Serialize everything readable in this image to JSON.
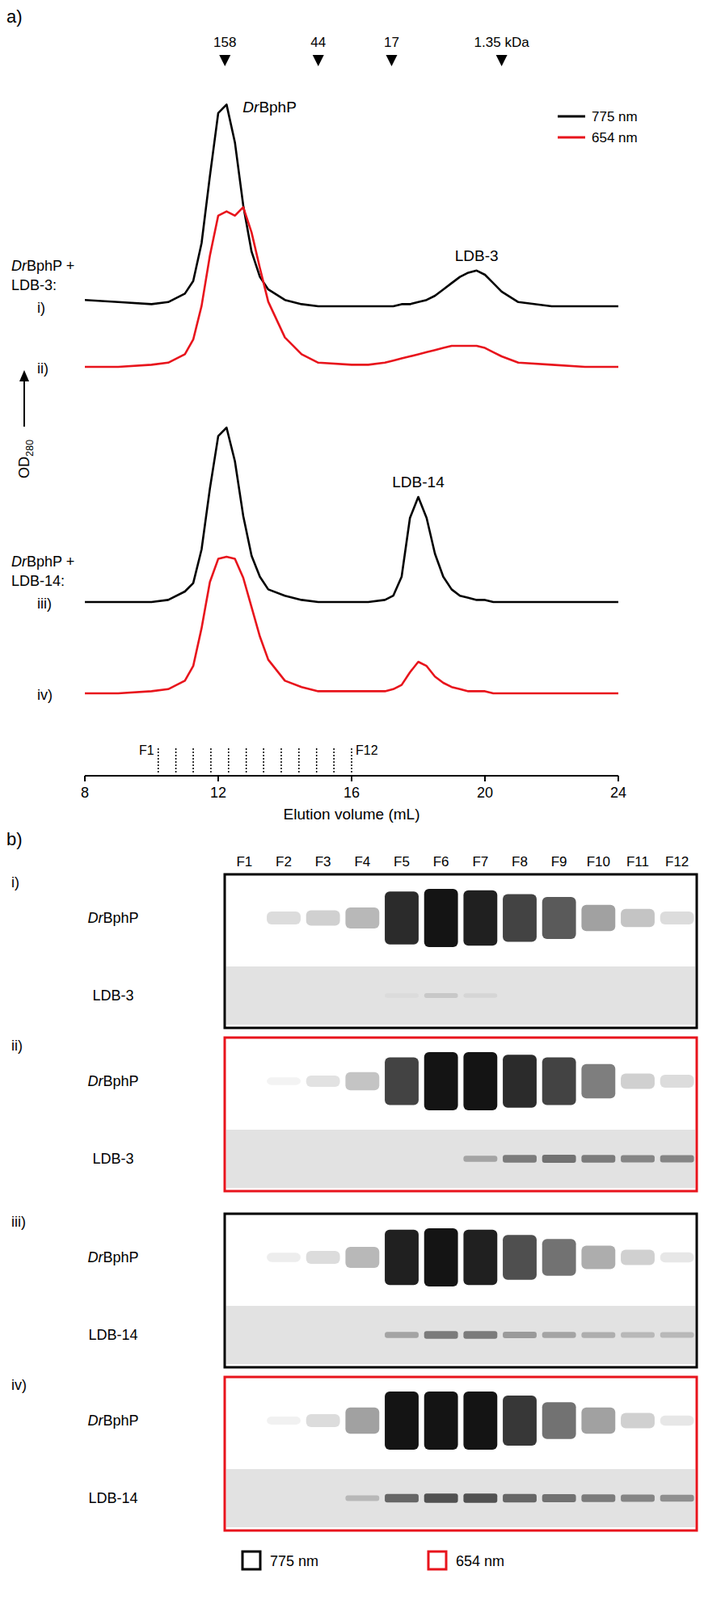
{
  "chart_data": [
    {
      "type": "line",
      "title": "a)",
      "x": [
        8,
        9,
        10,
        10.5,
        11,
        11.25,
        11.5,
        11.75,
        12,
        12.25,
        12.5,
        12.75,
        13,
        13.25,
        13.5,
        14,
        14.5,
        15,
        16,
        16.5,
        17,
        17.25,
        17.5,
        17.75,
        18,
        18.25,
        18.5,
        18.75,
        19,
        19.25,
        19.5,
        19.75,
        20,
        20.25,
        20.5,
        21,
        22,
        23,
        24
      ],
      "xlim": [
        8,
        24
      ],
      "xticks": [
        8,
        12,
        16,
        20,
        24
      ],
      "ylim": [
        0,
        1
      ],
      "tick_labels": "x",
      "x_label": "Elution volume (mL)",
      "y_label": "OD280",
      "series": [
        {
          "name": "775 nm",
          "label": "i)",
          "color": "#000000",
          "values": [
            0.03,
            0.02,
            0.01,
            0.02,
            0.06,
            0.12,
            0.3,
            0.62,
            0.92,
            0.96,
            0.78,
            0.48,
            0.26,
            0.14,
            0.08,
            0.03,
            0.01,
            0,
            0,
            0,
            0,
            0,
            0.01,
            0.01,
            0.02,
            0.03,
            0.05,
            0.08,
            0.11,
            0.14,
            0.16,
            0.17,
            0.15,
            0.11,
            0.07,
            0.02,
            0,
            0,
            0
          ]
        },
        {
          "name": "654 nm",
          "label": "ii)",
          "color": "#e8141c",
          "values": [
            0,
            0,
            0.01,
            0.02,
            0.06,
            0.13,
            0.29,
            0.53,
            0.72,
            0.74,
            0.72,
            0.76,
            0.64,
            0.47,
            0.31,
            0.14,
            0.06,
            0.02,
            0.01,
            0.01,
            0.02,
            0.03,
            0.04,
            0.05,
            0.06,
            0.07,
            0.08,
            0.09,
            0.1,
            0.1,
            0.1,
            0.1,
            0.09,
            0.07,
            0.05,
            0.02,
            0.01,
            0,
            0
          ]
        },
        {
          "name": "775 nm",
          "label": "iii)",
          "color": "#000000",
          "values": [
            0,
            0,
            0,
            0.01,
            0.05,
            0.09,
            0.25,
            0.54,
            0.79,
            0.83,
            0.67,
            0.41,
            0.22,
            0.12,
            0.06,
            0.03,
            0.01,
            0,
            0,
            0,
            0.01,
            0.03,
            0.12,
            0.4,
            0.5,
            0.4,
            0.23,
            0.12,
            0.06,
            0.03,
            0.02,
            0.01,
            0.01,
            0,
            0,
            0,
            0,
            0,
            0
          ]
        },
        {
          "name": "654 nm",
          "label": "iv)",
          "color": "#e8141c",
          "values": [
            0,
            0,
            0.01,
            0.02,
            0.06,
            0.13,
            0.31,
            0.53,
            0.64,
            0.65,
            0.64,
            0.55,
            0.41,
            0.27,
            0.16,
            0.06,
            0.03,
            0.01,
            0.01,
            0.01,
            0.01,
            0.02,
            0.04,
            0.1,
            0.15,
            0.13,
            0.08,
            0.05,
            0.03,
            0.02,
            0.01,
            0.01,
            0.01,
            0,
            0,
            0,
            0,
            0,
            0
          ]
        }
      ],
      "groups": [
        "DrBphP + LDB-3:",
        "DrBphP + LDB-14:"
      ],
      "annotations": [
        "DrBphP",
        "LDB-3",
        "LDB-14"
      ],
      "markers": {
        "x": [
          12.2,
          15,
          17.2,
          20.5
        ],
        "labels": [
          "158",
          "44",
          "17",
          "1.35 kDa"
        ]
      },
      "fractions": {
        "x": [
          10.2,
          10.73,
          11.25,
          11.78,
          12.31,
          12.84,
          13.36,
          13.89,
          14.42,
          14.95,
          15.47,
          16.0
        ],
        "labels": [
          "F1",
          null,
          null,
          null,
          null,
          null,
          null,
          null,
          null,
          null,
          null,
          "F12"
        ]
      }
    },
    {
      "type": "gel",
      "title": "b)",
      "categories": [
        "F1",
        "F2",
        "F3",
        "F4",
        "F5",
        "F6",
        "F7",
        "F8",
        "F9",
        "F10",
        "F11",
        "F12"
      ],
      "panels": [
        {
          "label": "i)",
          "name": "775 nm",
          "color": "#000000",
          "rows": [
            {
              "name": "DrBphP",
              "values": [
                0,
                0.15,
                0.2,
                0.3,
                0.9,
                1,
                0.95,
                0.8,
                0.7,
                0.4,
                0.25,
                0.15
              ]
            },
            {
              "name": "LDB-3",
              "values": [
                0,
                0,
                0,
                0,
                0.03,
                0.12,
                0.06,
                0,
                0,
                0,
                0,
                0
              ]
            }
          ]
        },
        {
          "label": "ii)",
          "name": "654 nm",
          "color": "#e8141c",
          "rows": [
            {
              "name": "DrBphP",
              "values": [
                0,
                0.05,
                0.12,
                0.25,
                0.8,
                1,
                1,
                0.9,
                0.8,
                0.55,
                0.2,
                0.15
              ]
            },
            {
              "name": "LDB-3",
              "values": [
                0,
                0,
                0,
                0,
                0,
                0,
                0.3,
                0.5,
                0.55,
                0.5,
                0.45,
                0.45
              ]
            }
          ]
        },
        {
          "label": "iii)",
          "name": "775 nm",
          "color": "#000000",
          "rows": [
            {
              "name": "DrBphP",
              "values": [
                0,
                0.08,
                0.15,
                0.3,
                0.95,
                1,
                0.95,
                0.75,
                0.6,
                0.35,
                0.2,
                0.1
              ]
            },
            {
              "name": "LDB-14",
              "values": [
                0,
                0,
                0,
                0,
                0.3,
                0.5,
                0.5,
                0.35,
                0.3,
                0.25,
                0.2,
                0.2
              ]
            }
          ]
        },
        {
          "label": "iv)",
          "name": "654 nm",
          "color": "#e8141c",
          "rows": [
            {
              "name": "DrBphP",
              "values": [
                0,
                0.06,
                0.15,
                0.4,
                1,
                1,
                1,
                0.85,
                0.6,
                0.4,
                0.2,
                0.1
              ]
            },
            {
              "name": "LDB-14",
              "values": [
                0,
                0,
                0,
                0.2,
                0.6,
                0.7,
                0.7,
                0.6,
                0.55,
                0.5,
                0.45,
                0.4
              ]
            }
          ]
        }
      ]
    }
  ]
}
